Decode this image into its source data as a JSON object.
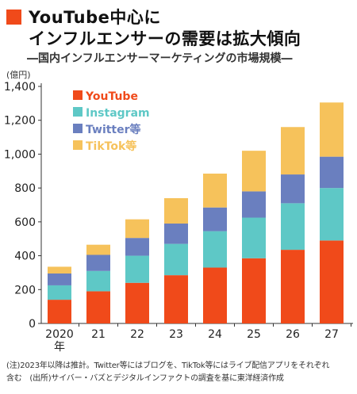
{
  "title_line1": "YouTube中心に",
  "title_line2": "インフルエンサーの需要は拡大傾向",
  "subtitle": "―国内インフルエンサーマーケティングの市場規模―",
  "unit_label": "(億円)",
  "note_line1": "(注)2023年以降は推計。Twitter等にはブログを、TikTok等にはライブ配信アプリをそれぞれ",
  "note_line2": "含む　(出所)サイバー・バズとデジタルインファクトの調査を基に東洋経済作成",
  "colors": {
    "YouTube": "#f04a1a",
    "Instagram": "#5ec8c6",
    "Twitter等": "#6a7fbf",
    "TikTok等": "#f6c25b"
  },
  "chart_data": {
    "type": "bar",
    "stacked": true,
    "categories": [
      "2020年",
      "21",
      "22",
      "23",
      "24",
      "25",
      "26",
      "27"
    ],
    "series": [
      {
        "name": "YouTube",
        "values": [
          140,
          190,
          240,
          285,
          330,
          385,
          435,
          490
        ]
      },
      {
        "name": "Instagram",
        "values": [
          85,
          120,
          160,
          185,
          215,
          240,
          275,
          310
        ]
      },
      {
        "name": "Twitter等",
        "values": [
          70,
          95,
          105,
          120,
          140,
          155,
          170,
          185
        ]
      },
      {
        "name": "TikTok等",
        "values": [
          40,
          60,
          110,
          150,
          200,
          240,
          280,
          320
        ]
      }
    ],
    "yticks": [
      "0",
      "200",
      "400",
      "600",
      "800",
      "1,000",
      "1,200",
      "1,400"
    ],
    "ylim": [
      0,
      1400
    ],
    "grid": false,
    "legend": "top-left"
  }
}
